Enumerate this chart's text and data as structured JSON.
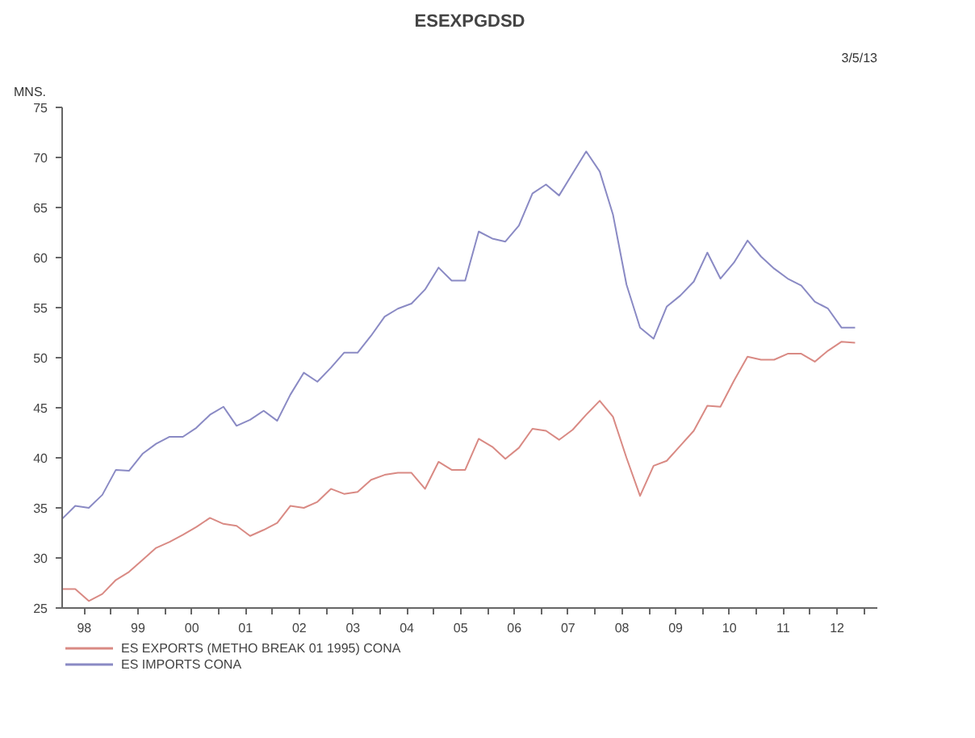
{
  "chart_data": {
    "type": "line",
    "title": "ESEXPGDSD",
    "ylabel": "MNS.",
    "annotations": [
      "3/5/13"
    ],
    "x": [
      "1998-02",
      "1998-05",
      "1998-08",
      "1998-11",
      "1999-02",
      "1999-05",
      "1999-08",
      "1999-11",
      "2000-02",
      "2000-05",
      "2000-08",
      "2000-11",
      "2001-02",
      "2001-05",
      "2001-08",
      "2001-11",
      "2002-02",
      "2002-05",
      "2002-08",
      "2002-11",
      "2003-02",
      "2003-05",
      "2003-08",
      "2003-11",
      "2004-02",
      "2004-05",
      "2004-08",
      "2004-11",
      "2005-02",
      "2005-05",
      "2005-08",
      "2005-11",
      "2006-02",
      "2006-05",
      "2006-08",
      "2006-11",
      "2007-02",
      "2007-05",
      "2007-08",
      "2007-11",
      "2008-02",
      "2008-05",
      "2008-08",
      "2008-11",
      "2009-02",
      "2009-05",
      "2009-08",
      "2009-11",
      "2010-02",
      "2010-05",
      "2010-08",
      "2010-11",
      "2011-02",
      "2011-05",
      "2011-08",
      "2011-11",
      "2012-02",
      "2012-05",
      "2012-08",
      "2012-11"
    ],
    "series": [
      {
        "name": "ES EXPORTS (METHO BREAK 01 1995) CONA",
        "color": "#d98a84",
        "values": [
          26.9,
          26.9,
          25.7,
          26.4,
          27.8,
          28.6,
          29.8,
          31.0,
          31.6,
          32.3,
          33.1,
          34.0,
          33.4,
          33.2,
          32.2,
          32.8,
          33.5,
          35.2,
          35.0,
          35.6,
          36.9,
          36.4,
          36.6,
          37.8,
          38.3,
          38.5,
          38.5,
          36.9,
          39.6,
          38.8,
          38.8,
          41.9,
          41.1,
          39.9,
          41.0,
          42.9,
          42.7,
          41.8,
          42.8,
          44.3,
          45.7,
          44.1,
          40.0,
          36.2,
          39.2,
          39.7,
          41.2,
          42.7,
          45.2,
          45.1,
          47.7,
          50.1,
          49.8,
          49.8,
          50.4,
          50.4,
          49.6,
          50.7,
          51.6,
          51.5
        ]
      },
      {
        "name": "ES IMPORTS CONA",
        "color": "#8a8ac4",
        "values": [
          33.9,
          35.2,
          35.0,
          36.3,
          38.8,
          38.7,
          40.4,
          41.4,
          42.1,
          42.1,
          43.0,
          44.3,
          45.1,
          43.2,
          43.8,
          44.7,
          43.7,
          46.3,
          48.5,
          47.6,
          49.0,
          50.5,
          50.5,
          52.2,
          54.1,
          54.9,
          55.4,
          56.8,
          59.0,
          57.7,
          57.7,
          62.6,
          61.9,
          61.6,
          63.2,
          66.4,
          67.3,
          66.2,
          68.4,
          70.6,
          68.6,
          64.3,
          57.3,
          53.0,
          51.9,
          55.1,
          56.2,
          57.6,
          60.5,
          57.9,
          59.5,
          61.7,
          60.1,
          58.9,
          57.9,
          57.2,
          55.6,
          54.9,
          53.0,
          53.0
        ]
      }
    ],
    "xlim": [
      "1998-02",
      "2013-04"
    ],
    "xticks": [
      {
        "value": "1998-07",
        "label": "98"
      },
      {
        "value": "1999-07",
        "label": "99"
      },
      {
        "value": "2000-07",
        "label": "00"
      },
      {
        "value": "2001-07",
        "label": "01"
      },
      {
        "value": "2002-07",
        "label": "02"
      },
      {
        "value": "2003-07",
        "label": "03"
      },
      {
        "value": "2004-07",
        "label": "04"
      },
      {
        "value": "2005-07",
        "label": "05"
      },
      {
        "value": "2006-07",
        "label": "06"
      },
      {
        "value": "2007-07",
        "label": "07"
      },
      {
        "value": "2008-07",
        "label": "08"
      },
      {
        "value": "2009-07",
        "label": "09"
      },
      {
        "value": "2010-07",
        "label": "10"
      },
      {
        "value": "2011-07",
        "label": "11"
      },
      {
        "value": "2012-07",
        "label": "12"
      },
      {
        "value": "1999-01",
        "label": null
      },
      {
        "value": "2000-01",
        "label": null
      },
      {
        "value": "2001-01",
        "label": null
      },
      {
        "value": "2002-01",
        "label": null
      },
      {
        "value": "2003-01",
        "label": null
      },
      {
        "value": "2004-01",
        "label": null
      },
      {
        "value": "2005-01",
        "label": null
      },
      {
        "value": "2006-01",
        "label": null
      },
      {
        "value": "2007-01",
        "label": null
      },
      {
        "value": "2008-01",
        "label": null
      },
      {
        "value": "2009-01",
        "label": null
      },
      {
        "value": "2010-01",
        "label": null
      },
      {
        "value": "2011-01",
        "label": null
      },
      {
        "value": "2012-01",
        "label": null
      },
      {
        "value": "2013-01",
        "label": null
      }
    ],
    "ylim": [
      25,
      75
    ],
    "yticks": [
      25,
      30,
      35,
      40,
      45,
      50,
      55,
      60,
      65,
      70,
      75
    ],
    "grid": false,
    "legend": "bottom",
    "marker": "none",
    "line_style": "solid"
  }
}
